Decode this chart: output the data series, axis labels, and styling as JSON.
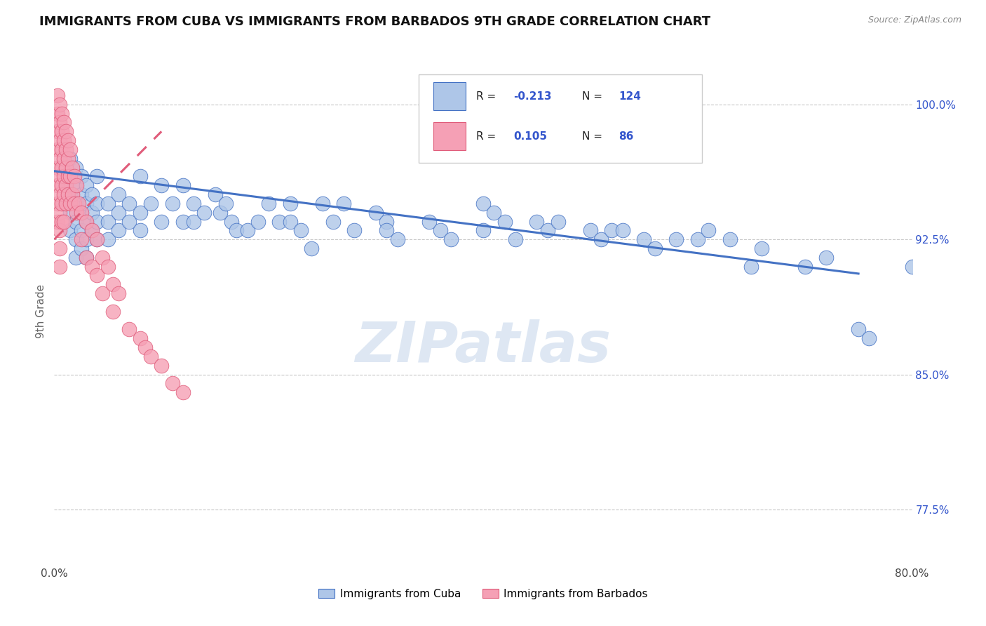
{
  "title": "IMMIGRANTS FROM CUBA VS IMMIGRANTS FROM BARBADOS 9TH GRADE CORRELATION CHART",
  "source_text": "Source: ZipAtlas.com",
  "ylabel": "9th Grade",
  "xlim": [
    0.0,
    0.8
  ],
  "ylim": [
    0.745,
    1.025
  ],
  "xticks": [
    0.0,
    0.1,
    0.2,
    0.3,
    0.4,
    0.5,
    0.6,
    0.7,
    0.8
  ],
  "xticklabels": [
    "0.0%",
    "",
    "",
    "",
    "",
    "",
    "",
    "",
    "80.0%"
  ],
  "yticks_right": [
    0.775,
    0.85,
    0.925,
    1.0
  ],
  "yticklabels_right": [
    "77.5%",
    "85.0%",
    "92.5%",
    "100.0%"
  ],
  "cuba_color": "#aec6e8",
  "barbados_color": "#f5a0b5",
  "trend_cuba_color": "#4472c4",
  "trend_barbados_color": "#e05c7a",
  "background_color": "#ffffff",
  "watermark": "ZIPatlas",
  "legend_color": "#3355cc",
  "cuba_trend_x0": 0.0,
  "cuba_trend_y0": 0.963,
  "cuba_trend_x1": 0.75,
  "cuba_trend_y1": 0.906,
  "barb_trend_x0": 0.0,
  "barb_trend_y0": 0.925,
  "barb_trend_x1": 0.1,
  "barb_trend_y1": 0.985
}
